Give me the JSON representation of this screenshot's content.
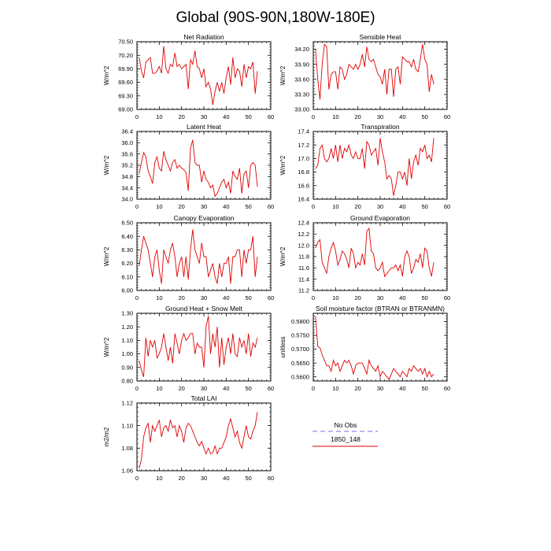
{
  "figure": {
    "title": "Global (90S-90N,180W-180E)",
    "series_color": "#e00000",
    "obs_color": "#8c8cf0"
  },
  "legend": {
    "obs_label": "No Obs",
    "model_label": "1850_148"
  },
  "chart_data": [
    {
      "type": "line",
      "title": "Net Radiation",
      "ylabel": "W/m^2",
      "xlim": [
        0,
        60
      ],
      "ylim": [
        69.0,
        70.5
      ],
      "xticks": [
        "0",
        "10",
        "20",
        "30",
        "40",
        "50",
        "60"
      ],
      "yticks": [
        "69.00",
        "69.30",
        "69.60",
        "69.90",
        "70.20",
        "70.50"
      ],
      "series": [
        {
          "values": [
            70.15,
            69.85,
            69.7,
            70.05,
            70.1,
            70.15,
            69.8,
            69.8,
            69.85,
            69.95,
            69.8,
            70.4,
            69.9,
            69.8,
            70.0,
            69.95,
            70.25,
            69.95,
            70.0,
            69.9,
            69.95,
            70.0,
            69.45,
            70.1,
            70.0,
            70.3,
            69.95,
            69.9,
            69.7,
            69.9,
            69.5,
            69.6,
            69.45,
            69.1,
            69.4,
            69.6,
            69.4,
            69.6,
            69.35,
            69.7,
            69.95,
            69.55,
            70.15,
            69.7,
            69.9,
            69.85,
            69.5,
            70.0,
            69.7,
            69.95,
            69.9,
            70.05,
            69.35,
            69.85
          ]
        }
      ]
    },
    {
      "type": "line",
      "title": "Sensible Heat",
      "ylabel": "W/m^2",
      "xlim": [
        0,
        60
      ],
      "ylim": [
        33.0,
        34.35
      ],
      "xticks": [
        "0",
        "10",
        "20",
        "30",
        "40",
        "50",
        "60"
      ],
      "yticks": [
        "33.00",
        "33.30",
        "33.60",
        "33.90",
        "34.20"
      ],
      "series": [
        {
          "values": [
            34.2,
            33.6,
            33.2,
            33.9,
            34.3,
            34.25,
            33.4,
            33.7,
            33.75,
            33.75,
            33.4,
            33.85,
            33.8,
            33.6,
            33.7,
            33.9,
            33.85,
            33.8,
            33.9,
            33.8,
            33.9,
            34.1,
            33.85,
            34.25,
            34.0,
            33.95,
            34.0,
            33.85,
            33.7,
            33.65,
            33.5,
            33.8,
            33.3,
            33.8,
            33.8,
            33.25,
            33.8,
            33.85,
            33.5,
            34.05,
            34.0,
            33.95,
            33.95,
            33.85,
            34.0,
            33.8,
            33.75,
            34.0,
            34.3,
            34.0,
            33.9,
            33.35,
            33.7,
            33.5
          ]
        }
      ]
    },
    {
      "type": "line",
      "title": "Latent Heat",
      "ylabel": "W/m^2",
      "xlim": [
        0,
        60
      ],
      "ylim": [
        34.0,
        36.4
      ],
      "xticks": [
        "0",
        "10",
        "20",
        "30",
        "40",
        "50",
        "60"
      ],
      "yticks": [
        "34.0",
        "34.4",
        "34.8",
        "35.2",
        "35.6",
        "36.0",
        "36.4"
      ],
      "series": [
        {
          "values": [
            34.9,
            35.3,
            35.65,
            35.5,
            35.0,
            34.8,
            34.55,
            35.3,
            35.5,
            35.1,
            35.0,
            35.7,
            35.4,
            35.2,
            35.0,
            35.3,
            35.4,
            35.1,
            35.2,
            35.1,
            35.05,
            34.95,
            34.3,
            35.8,
            36.1,
            35.3,
            35.2,
            35.2,
            34.6,
            35.0,
            34.7,
            34.6,
            34.4,
            34.5,
            34.1,
            34.2,
            34.4,
            34.6,
            34.7,
            34.4,
            34.6,
            34.2,
            35.0,
            34.8,
            34.7,
            35.1,
            34.2,
            34.9,
            35.0,
            34.4,
            35.2,
            35.3,
            35.2,
            34.45
          ]
        }
      ]
    },
    {
      "type": "line",
      "title": "Transpiration",
      "ylabel": "W/m^2",
      "xlim": [
        0,
        60
      ],
      "ylim": [
        16.4,
        17.4
      ],
      "xticks": [
        "0",
        "10",
        "20",
        "30",
        "40",
        "50",
        "60"
      ],
      "yticks": [
        "16.4",
        "16.6",
        "16.8",
        "17.0",
        "17.2",
        "17.4"
      ],
      "series": [
        {
          "values": [
            16.85,
            16.9,
            17.15,
            17.2,
            17.0,
            16.95,
            17.0,
            17.15,
            17.0,
            17.2,
            16.95,
            17.2,
            17.0,
            17.15,
            17.1,
            17.2,
            17.05,
            17.0,
            17.1,
            17.0,
            17.0,
            17.15,
            16.85,
            17.25,
            17.2,
            17.05,
            17.1,
            17.15,
            16.9,
            17.3,
            17.1,
            16.95,
            16.7,
            16.75,
            16.7,
            16.45,
            16.6,
            16.8,
            16.8,
            16.7,
            16.8,
            16.6,
            17.0,
            16.7,
            16.95,
            17.05,
            16.9,
            17.15,
            17.1,
            17.2,
            17.0,
            17.05,
            16.95,
            17.3
          ]
        }
      ]
    },
    {
      "type": "line",
      "title": "Canopy Evaporation",
      "ylabel": "W/m^2",
      "xlim": [
        0,
        60
      ],
      "ylim": [
        6.0,
        6.5
      ],
      "xticks": [
        "0",
        "10",
        "20",
        "30",
        "40",
        "50",
        "60"
      ],
      "yticks": [
        "6.00",
        "6.10",
        "6.20",
        "6.30",
        "6.40",
        "6.50"
      ],
      "series": [
        {
          "values": [
            6.18,
            6.3,
            6.4,
            6.35,
            6.3,
            6.2,
            6.1,
            6.25,
            6.3,
            6.15,
            6.05,
            6.3,
            6.25,
            6.2,
            6.3,
            6.35,
            6.25,
            6.1,
            6.2,
            6.25,
            6.1,
            6.25,
            6.08,
            6.3,
            6.45,
            6.3,
            6.25,
            6.2,
            6.35,
            6.25,
            6.25,
            6.1,
            6.15,
            6.2,
            6.1,
            6.05,
            6.2,
            6.1,
            6.2,
            6.2,
            6.25,
            6.05,
            6.25,
            6.25,
            6.3,
            6.3,
            6.1,
            6.3,
            6.2,
            6.3,
            6.3,
            6.4,
            6.1,
            6.25
          ]
        }
      ]
    },
    {
      "type": "line",
      "title": "Ground Evaporation",
      "ylabel": "W/m^2",
      "xlim": [
        0,
        60
      ],
      "ylim": [
        11.2,
        12.4
      ],
      "xticks": [
        "0",
        "10",
        "20",
        "30",
        "40",
        "50",
        "60"
      ],
      "yticks": [
        "11.2",
        "11.4",
        "11.6",
        "11.8",
        "12.0",
        "12.2",
        "12.4"
      ],
      "series": [
        {
          "values": [
            11.95,
            12.05,
            12.1,
            11.7,
            11.6,
            11.5,
            11.8,
            11.95,
            12.05,
            11.9,
            11.65,
            11.75,
            11.9,
            11.85,
            11.75,
            11.6,
            11.95,
            11.85,
            11.6,
            11.7,
            11.65,
            11.85,
            11.65,
            12.25,
            12.3,
            11.9,
            11.85,
            11.6,
            11.55,
            11.6,
            11.7,
            11.45,
            11.5,
            11.55,
            11.6,
            11.6,
            11.65,
            11.55,
            11.65,
            11.45,
            11.8,
            11.9,
            11.8,
            11.5,
            11.6,
            11.75,
            11.7,
            11.85,
            11.6,
            11.95,
            11.9,
            11.6,
            11.45,
            11.7
          ]
        }
      ]
    },
    {
      "type": "line",
      "title": "Ground Heat + Snow Melt",
      "ylabel": "W/m^2",
      "xlim": [
        0,
        60
      ],
      "ylim": [
        0.8,
        1.3
      ],
      "xticks": [
        "0",
        "10",
        "20",
        "30",
        "40",
        "50",
        "60"
      ],
      "yticks": [
        "0.80",
        "0.90",
        "1.00",
        "1.10",
        "1.20",
        "1.30"
      ],
      "series": [
        {
          "values": [
            0.95,
            0.88,
            0.83,
            1.12,
            0.98,
            1.1,
            1.05,
            1.1,
            0.97,
            1.0,
            1.05,
            1.15,
            1.05,
            0.95,
            1.05,
            0.93,
            1.15,
            1.08,
            1.0,
            1.1,
            1.15,
            1.1,
            1.12,
            1.15,
            1.15,
            1.0,
            1.08,
            1.05,
            1.05,
            0.9,
            1.2,
            1.28,
            1.0,
            1.15,
            1.05,
            1.2,
            0.9,
            1.12,
            0.92,
            1.05,
            1.12,
            1.0,
            1.15,
            1.0,
            0.98,
            1.12,
            1.05,
            1.1,
            1.0,
            1.15,
            0.98,
            1.08,
            1.05,
            1.12
          ]
        }
      ]
    },
    {
      "type": "line",
      "title": "Soil moisture factor (BTRAN or BTRANMN)",
      "ylabel": "unitless",
      "xlim": [
        0,
        60
      ],
      "ylim": [
        0.5585,
        0.583
      ],
      "xticks": [
        "0",
        "10",
        "20",
        "30",
        "40",
        "50",
        "60"
      ],
      "yticks": [
        "0.5600",
        "0.5650",
        "0.5700",
        "0.5750",
        "0.5800"
      ],
      "series": [
        {
          "values": [
            0.582,
            0.571,
            0.5705,
            0.568,
            0.566,
            0.564,
            0.564,
            0.562,
            0.566,
            0.564,
            0.565,
            0.562,
            0.564,
            0.566,
            0.565,
            0.566,
            0.564,
            0.561,
            0.564,
            0.565,
            0.565,
            0.565,
            0.563,
            0.561,
            0.566,
            0.564,
            0.563,
            0.562,
            0.564,
            0.56,
            0.562,
            0.561,
            0.56,
            0.559,
            0.561,
            0.563,
            0.562,
            0.561,
            0.56,
            0.562,
            0.561,
            0.56,
            0.563,
            0.562,
            0.564,
            0.563,
            0.562,
            0.563,
            0.561,
            0.563,
            0.56,
            0.562,
            0.56,
            0.561
          ]
        }
      ]
    },
    {
      "type": "line",
      "title": "Total LAI",
      "ylabel": "m2/m2",
      "xlim": [
        0,
        60
      ],
      "ylim": [
        1.06,
        1.12
      ],
      "xticks": [
        "0",
        "10",
        "20",
        "30",
        "40",
        "50",
        "60"
      ],
      "yticks": [
        "1.06",
        "1.08",
        "1.10",
        "1.12"
      ],
      "series": [
        {
          "values": [
            1.062,
            1.07,
            1.09,
            1.098,
            1.102,
            1.085,
            1.1,
            1.095,
            1.1,
            1.105,
            1.09,
            1.098,
            1.1,
            1.095,
            1.105,
            1.098,
            1.1,
            1.09,
            1.1,
            1.095,
            1.085,
            1.098,
            1.102,
            1.1,
            1.095,
            1.09,
            1.085,
            1.082,
            1.086,
            1.08,
            1.075,
            1.08,
            1.075,
            1.076,
            1.082,
            1.075,
            1.08,
            1.08,
            1.085,
            1.09,
            1.1,
            1.106,
            1.098,
            1.09,
            1.095,
            1.085,
            1.08,
            1.09,
            1.1,
            1.09,
            1.088,
            1.095,
            1.1,
            1.112
          ]
        }
      ]
    }
  ]
}
